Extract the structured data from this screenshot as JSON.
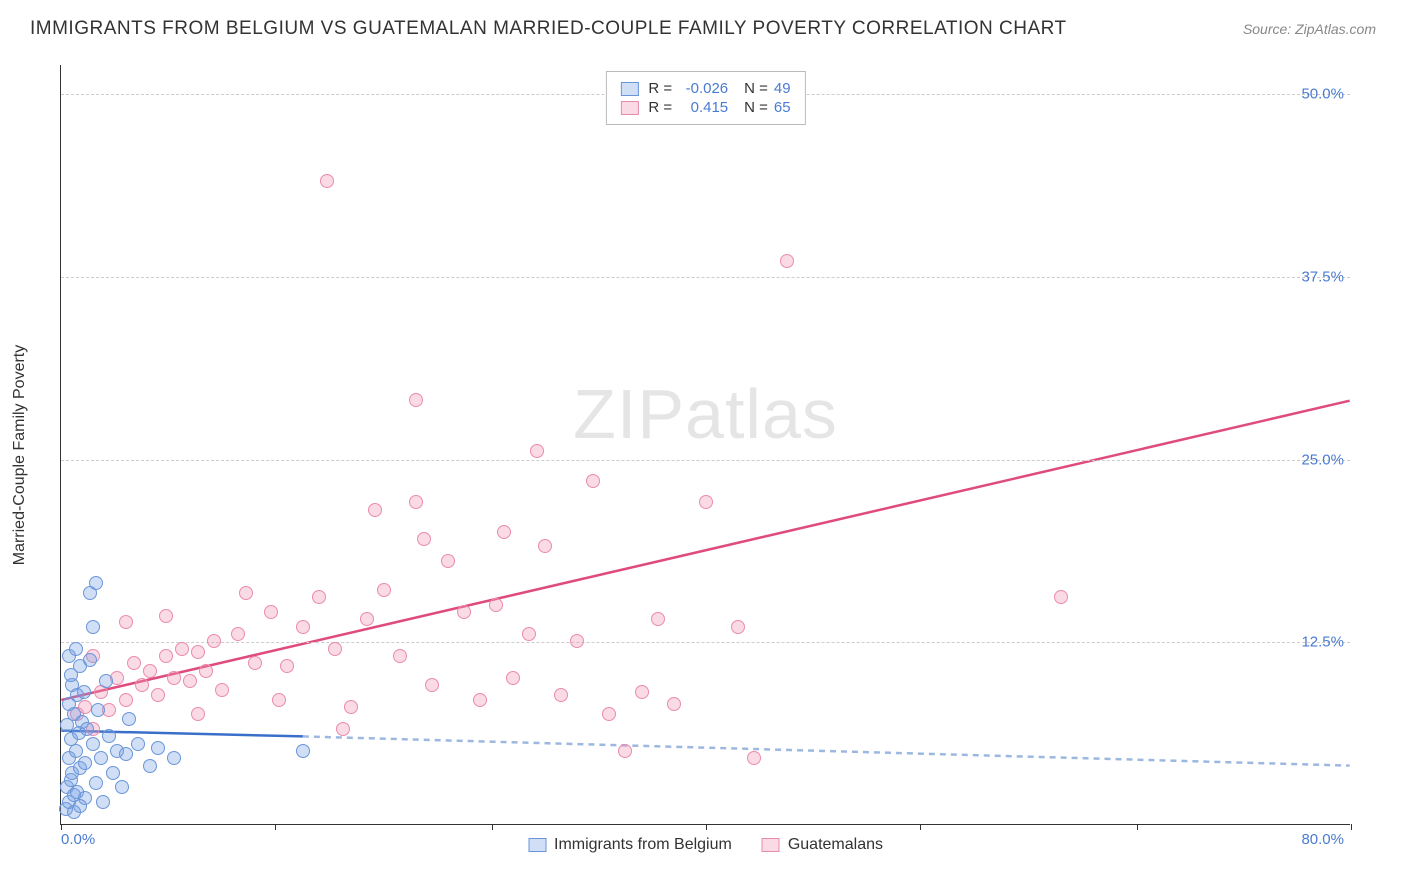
{
  "title": "IMMIGRANTS FROM BELGIUM VS GUATEMALAN MARRIED-COUPLE FAMILY POVERTY CORRELATION CHART",
  "source": "Source: ZipAtlas.com",
  "ylabel": "Married-Couple Family Poverty",
  "watermark_a": "ZIP",
  "watermark_b": "atlas",
  "chart": {
    "type": "scatter",
    "xlim": [
      0,
      80
    ],
    "ylim": [
      0,
      52
    ],
    "x_origin_label": "0.0%",
    "x_max_label": "80.0%",
    "x_tick_positions": [
      0,
      13.3,
      26.7,
      40,
      53.3,
      66.7,
      80
    ],
    "y_ticks": [
      {
        "v": 12.5,
        "label": "12.5%"
      },
      {
        "v": 25.0,
        "label": "25.0%"
      },
      {
        "v": 37.5,
        "label": "37.5%"
      },
      {
        "v": 50.0,
        "label": "50.0%"
      }
    ],
    "grid_color": "#cccccc",
    "background": "#ffffff",
    "series": [
      {
        "name": "Immigrants from Belgium",
        "fill": "rgba(120,160,230,0.35)",
        "stroke": "#6a96d8",
        "line_color": "#3a6fc9",
        "line_dash_color": "#9db8e0",
        "R": "-0.026",
        "N": "49",
        "trend": {
          "x1": 0,
          "y1": 6.4,
          "x2": 15,
          "y2": 6.0,
          "dash_x2": 80,
          "dash_y2": 4.0
        },
        "points": [
          [
            0.3,
            1.0
          ],
          [
            0.5,
            1.5
          ],
          [
            0.8,
            2.0
          ],
          [
            0.4,
            2.5
          ],
          [
            0.6,
            3.0
          ],
          [
            1.0,
            2.2
          ],
          [
            0.7,
            3.5
          ],
          [
            1.2,
            3.8
          ],
          [
            0.5,
            4.5
          ],
          [
            0.9,
            5.0
          ],
          [
            1.5,
            4.2
          ],
          [
            0.6,
            5.8
          ],
          [
            1.1,
            6.2
          ],
          [
            0.4,
            6.8
          ],
          [
            0.8,
            7.5
          ],
          [
            1.3,
            7.0
          ],
          [
            0.5,
            8.2
          ],
          [
            1.0,
            8.8
          ],
          [
            0.7,
            9.5
          ],
          [
            1.4,
            9.0
          ],
          [
            0.6,
            10.2
          ],
          [
            1.2,
            10.8
          ],
          [
            0.5,
            11.5
          ],
          [
            0.9,
            12.0
          ],
          [
            1.6,
            6.5
          ],
          [
            2.0,
            5.5
          ],
          [
            2.3,
            7.8
          ],
          [
            2.5,
            4.5
          ],
          [
            3.0,
            6.0
          ],
          [
            3.2,
            3.5
          ],
          [
            3.5,
            5.0
          ],
          [
            4.0,
            4.8
          ],
          [
            4.2,
            7.2
          ],
          [
            4.8,
            5.5
          ],
          [
            5.5,
            4.0
          ],
          [
            6.0,
            5.2
          ],
          [
            7.0,
            4.5
          ],
          [
            2.8,
            9.8
          ],
          [
            1.8,
            11.2
          ],
          [
            2.2,
            2.8
          ],
          [
            3.8,
            2.5
          ],
          [
            1.5,
            1.8
          ],
          [
            2.6,
            1.5
          ],
          [
            0.8,
            0.8
          ],
          [
            1.2,
            1.2
          ],
          [
            2.0,
            13.5
          ],
          [
            1.8,
            15.8
          ],
          [
            2.2,
            16.5
          ],
          [
            15.0,
            5.0
          ]
        ]
      },
      {
        "name": "Guatemalans",
        "fill": "rgba(240,150,180,0.35)",
        "stroke": "#e98bad",
        "line_color": "#e04b7e",
        "line_dash_color": "#e04b7e",
        "R": "0.415",
        "N": "65",
        "trend": {
          "x1": 0,
          "y1": 8.5,
          "x2": 80,
          "y2": 29.0
        },
        "points": [
          [
            1.0,
            7.5
          ],
          [
            1.5,
            8.0
          ],
          [
            2.0,
            6.5
          ],
          [
            2.5,
            9.0
          ],
          [
            3.0,
            7.8
          ],
          [
            3.5,
            10.0
          ],
          [
            4.0,
            8.5
          ],
          [
            4.5,
            11.0
          ],
          [
            5.0,
            9.5
          ],
          [
            5.5,
            10.5
          ],
          [
            6.0,
            8.8
          ],
          [
            6.5,
            11.5
          ],
          [
            7.0,
            10.0
          ],
          [
            7.5,
            12.0
          ],
          [
            8.0,
            9.8
          ],
          [
            8.5,
            11.8
          ],
          [
            9.0,
            10.5
          ],
          [
            9.5,
            12.5
          ],
          [
            10.0,
            9.2
          ],
          [
            11.0,
            13.0
          ],
          [
            12.0,
            11.0
          ],
          [
            13.0,
            14.5
          ],
          [
            14.0,
            10.8
          ],
          [
            15.0,
            13.5
          ],
          [
            16.0,
            15.5
          ],
          [
            17.0,
            12.0
          ],
          [
            18.0,
            8.0
          ],
          [
            19.0,
            14.0
          ],
          [
            20.0,
            16.0
          ],
          [
            21.0,
            11.5
          ],
          [
            22.0,
            22.0
          ],
          [
            23.0,
            9.5
          ],
          [
            24.0,
            18.0
          ],
          [
            25.0,
            14.5
          ],
          [
            22.5,
            19.5
          ],
          [
            26.0,
            8.5
          ],
          [
            27.0,
            15.0
          ],
          [
            27.5,
            20.0
          ],
          [
            28.0,
            10.0
          ],
          [
            29.0,
            13.0
          ],
          [
            29.5,
            25.5
          ],
          [
            30.0,
            19.0
          ],
          [
            31.0,
            8.8
          ],
          [
            32.0,
            12.5
          ],
          [
            33.0,
            23.5
          ],
          [
            34.0,
            7.5
          ],
          [
            35.0,
            5.0
          ],
          [
            36.0,
            9.0
          ],
          [
            37.0,
            14.0
          ],
          [
            38.0,
            8.2
          ],
          [
            40.0,
            22.0
          ],
          [
            42.0,
            13.5
          ],
          [
            43.0,
            4.5
          ],
          [
            45.0,
            38.5
          ],
          [
            62.0,
            15.5
          ],
          [
            16.5,
            44.0
          ],
          [
            22.0,
            29.0
          ],
          [
            19.5,
            21.5
          ],
          [
            11.5,
            15.8
          ],
          [
            6.5,
            14.2
          ],
          [
            4.0,
            13.8
          ],
          [
            2.0,
            11.5
          ],
          [
            8.5,
            7.5
          ],
          [
            13.5,
            8.5
          ],
          [
            17.5,
            6.5
          ]
        ]
      }
    ]
  }
}
